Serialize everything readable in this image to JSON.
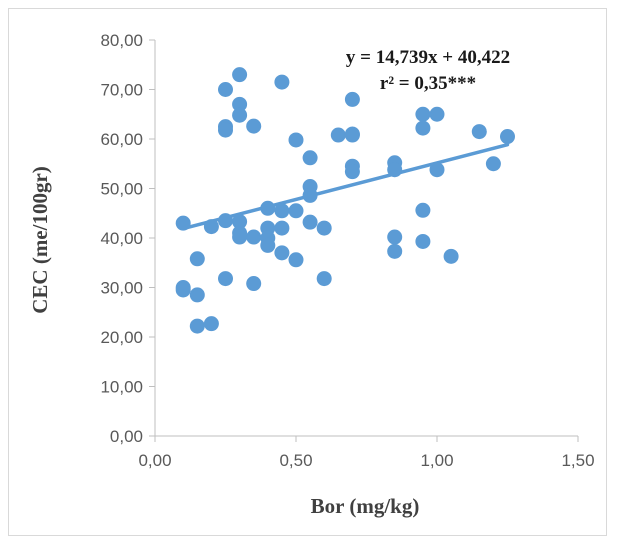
{
  "chart_data": {
    "type": "scatter",
    "xlabel": "Bor (mg/kg)",
    "ylabel": "CEC (me/100gr)",
    "xlim": [
      0,
      1.5
    ],
    "ylim": [
      0,
      80
    ],
    "x_ticks": [
      "0,00",
      "0,50",
      "1,00",
      "1,50"
    ],
    "y_ticks": [
      "0,00",
      "10,00",
      "20,00",
      "30,00",
      "40,00",
      "50,00",
      "60,00",
      "70,00",
      "80,00"
    ],
    "grid": false,
    "point_color": "#5B9BD5",
    "trendline": {
      "slope": 14.739,
      "intercept": 40.422,
      "x_range": [
        0.1,
        1.25
      ],
      "color": "#5B9BD5"
    },
    "annotations": {
      "equation": "y = 14,739x + 40,422",
      "r2": "r² = 0,35***"
    },
    "points": [
      [
        0.1,
        43.0
      ],
      [
        0.1,
        30.0
      ],
      [
        0.1,
        29.5
      ],
      [
        0.15,
        35.8
      ],
      [
        0.15,
        28.5
      ],
      [
        0.15,
        22.2
      ],
      [
        0.2,
        42.3
      ],
      [
        0.2,
        22.7
      ],
      [
        0.25,
        70.0
      ],
      [
        0.25,
        62.5
      ],
      [
        0.25,
        61.8
      ],
      [
        0.25,
        43.5
      ],
      [
        0.25,
        31.8
      ],
      [
        0.3,
        73.0
      ],
      [
        0.3,
        67.0
      ],
      [
        0.3,
        64.8
      ],
      [
        0.3,
        43.3
      ],
      [
        0.3,
        41.0
      ],
      [
        0.3,
        40.2
      ],
      [
        0.35,
        62.6
      ],
      [
        0.35,
        40.2
      ],
      [
        0.35,
        30.8
      ],
      [
        0.4,
        46.0
      ],
      [
        0.4,
        42.0
      ],
      [
        0.4,
        40.0
      ],
      [
        0.4,
        38.5
      ],
      [
        0.45,
        71.5
      ],
      [
        0.45,
        45.5
      ],
      [
        0.45,
        42.0
      ],
      [
        0.45,
        37.0
      ],
      [
        0.5,
        59.8
      ],
      [
        0.5,
        45.5
      ],
      [
        0.5,
        35.6
      ],
      [
        0.55,
        56.2
      ],
      [
        0.55,
        50.4
      ],
      [
        0.55,
        48.6
      ],
      [
        0.55,
        43.2
      ],
      [
        0.6,
        42.0
      ],
      [
        0.6,
        31.8
      ],
      [
        0.65,
        60.8
      ],
      [
        0.7,
        68.0
      ],
      [
        0.7,
        61.0
      ],
      [
        0.7,
        60.8
      ],
      [
        0.7,
        54.5
      ],
      [
        0.7,
        53.4
      ],
      [
        0.85,
        55.2
      ],
      [
        0.85,
        53.8
      ],
      [
        0.85,
        40.2
      ],
      [
        0.85,
        37.3
      ],
      [
        0.95,
        65.0
      ],
      [
        0.95,
        62.2
      ],
      [
        0.95,
        45.6
      ],
      [
        0.95,
        39.3
      ],
      [
        1.0,
        65.0
      ],
      [
        1.0,
        53.8
      ],
      [
        1.05,
        36.3
      ],
      [
        1.15,
        61.5
      ],
      [
        1.2,
        55.0
      ],
      [
        1.25,
        60.5
      ]
    ]
  }
}
